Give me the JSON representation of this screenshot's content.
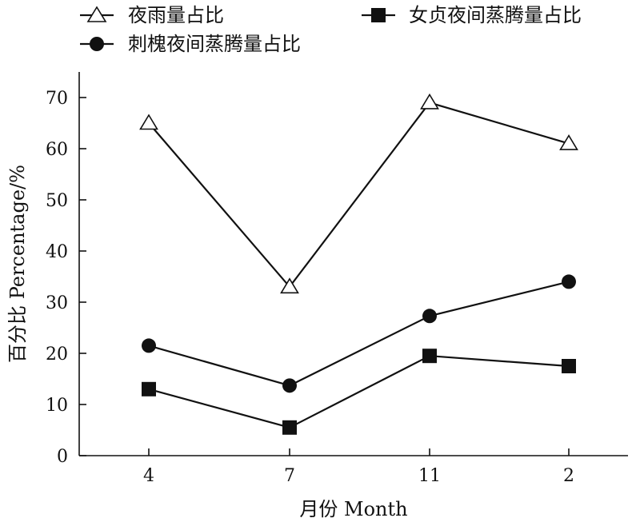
{
  "chart_data": {
    "type": "line",
    "categories": [
      "4",
      "7",
      "11",
      "2"
    ],
    "xlabel": "月份 Month",
    "ylabel": "百分比 Percentage/%",
    "ylim": [
      0,
      75
    ],
    "yticks": [
      "0",
      "10",
      "20",
      "30",
      "40",
      "50",
      "60",
      "70"
    ],
    "grid": false,
    "legend_position": "top",
    "series": [
      {
        "name": "夜雨量占比",
        "marker": "open-triangle",
        "values": [
          65,
          33,
          69,
          61
        ]
      },
      {
        "name": "女贞夜间蒸腾量占比",
        "marker": "filled-square",
        "values": [
          13,
          5.5,
          19.5,
          17.5
        ]
      },
      {
        "name": "刺槐夜间蒸腾量占比",
        "marker": "filled-circle",
        "values": [
          21.5,
          13.7,
          27.3,
          34
        ]
      }
    ],
    "colors": {
      "line": "#111111",
      "marker_fill": "#111111",
      "open_fill": "#ffffff"
    }
  }
}
